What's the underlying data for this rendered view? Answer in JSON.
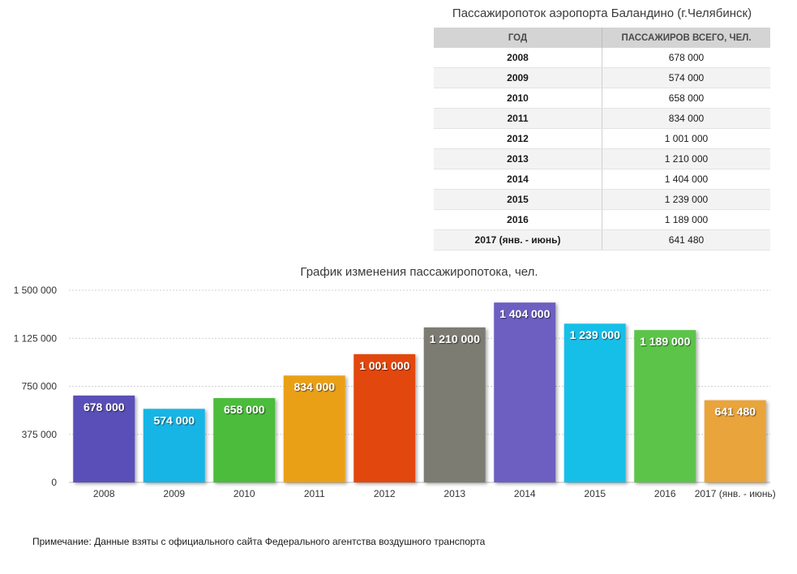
{
  "table": {
    "title": "Пассажиропоток аэропорта Баландино (г.Челябинск)",
    "headers": [
      "ГОД",
      "ПАССАЖИРОВ ВСЕГО, ЧЕЛ."
    ],
    "rows": [
      [
        "2008",
        "678 000"
      ],
      [
        "2009",
        "574 000"
      ],
      [
        "2010",
        "658 000"
      ],
      [
        "2011",
        "834 000"
      ],
      [
        "2012",
        "1 001 000"
      ],
      [
        "2013",
        "1 210 000"
      ],
      [
        "2014",
        "1 404 000"
      ],
      [
        "2015",
        "1 239 000"
      ],
      [
        "2016",
        "1 189 000"
      ],
      [
        "2017 (янв. - июнь)",
        "641 480"
      ]
    ]
  },
  "chart_data": {
    "type": "bar",
    "title": "График изменения пассажиропотока, чел.",
    "xlabel": "",
    "ylabel": "",
    "categories": [
      "2008",
      "2009",
      "2010",
      "2011",
      "2012",
      "2013",
      "2014",
      "2015",
      "2016",
      "2017 (янв. - июнь)"
    ],
    "values": [
      678000,
      574000,
      658000,
      834000,
      1001000,
      1210000,
      1404000,
      1239000,
      1189000,
      641480
    ],
    "value_labels": [
      "678 000",
      "574 000",
      "658 000",
      "834 000",
      "1 001 000",
      "1 210 000",
      "1 404 000",
      "1 239 000",
      "1 189 000",
      "641 480"
    ],
    "colors": [
      "#5a4fb8",
      "#12b5e6",
      "#4cbc3a",
      "#eaa012",
      "#e2470f",
      "#7d7c73",
      "#6c5ec1",
      "#16bfe8",
      "#5cc44a",
      "#e9a43a"
    ],
    "ylim": [
      0,
      1500000
    ],
    "yticks": [
      0,
      375000,
      750000,
      1125000,
      1500000
    ],
    "ytick_labels": [
      "0",
      "375 000",
      "750 000",
      "1 125 000",
      "1 500 000"
    ],
    "grid": true,
    "legend": "none"
  },
  "note": "Примечание: Данные взяты с официального сайта Федерального агентства воздушного транспорта"
}
